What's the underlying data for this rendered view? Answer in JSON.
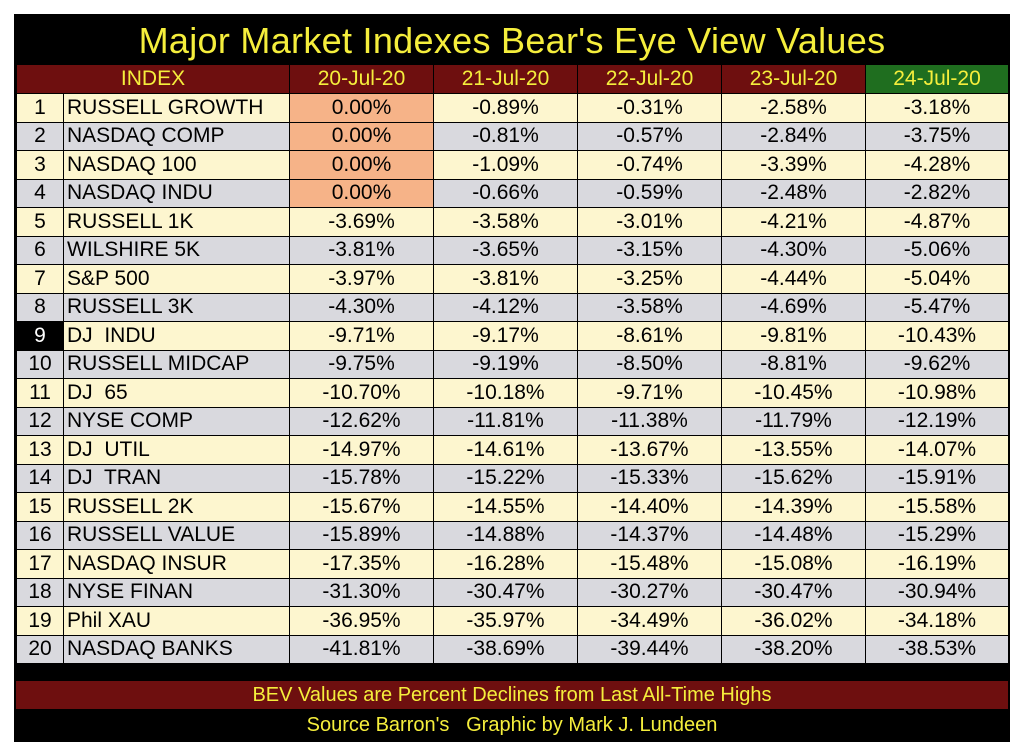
{
  "title": "Major Market Indexes Bear's Eye View Values",
  "footer_note": "BEV Values are Percent Declines from Last All-Time Highs",
  "footer_source": "Source Barron's   Graphic by Mark J. Lundeen",
  "colors": {
    "title_text": "#f5ee3c",
    "header_bg": "#6e0f0f",
    "header_highlight_bg": "#1f6e1f",
    "row_odd_bg": "#fdf6cf",
    "row_even_bg": "#d9d9de",
    "highlight_cell_bg": "#f6b388"
  },
  "chart_data": {
    "type": "table",
    "title": "Major Market Indexes Bear's Eye View Values",
    "columns": [
      "INDEX",
      "20-Jul-20",
      "21-Jul-20",
      "22-Jul-20",
      "23-Jul-20",
      "24-Jul-20"
    ],
    "highlighted_column": "24-Jul-20",
    "rows": [
      {
        "rank": "1",
        "index": "RUSSELL GROWTH",
        "values": [
          "0.00%",
          "-0.89%",
          "-0.31%",
          "-2.58%",
          "-3.18%"
        ]
      },
      {
        "rank": "2",
        "index": "NASDAQ COMP",
        "values": [
          "0.00%",
          "-0.81%",
          "-0.57%",
          "-2.84%",
          "-3.75%"
        ]
      },
      {
        "rank": "3",
        "index": "NASDAQ 100",
        "values": [
          "0.00%",
          "-1.09%",
          "-0.74%",
          "-3.39%",
          "-4.28%"
        ]
      },
      {
        "rank": "4",
        "index": "NASDAQ INDU",
        "values": [
          "0.00%",
          "-0.66%",
          "-0.59%",
          "-2.48%",
          "-2.82%"
        ]
      },
      {
        "rank": "5",
        "index": "RUSSELL 1K",
        "values": [
          "-3.69%",
          "-3.58%",
          "-3.01%",
          "-4.21%",
          "-4.87%"
        ]
      },
      {
        "rank": "6",
        "index": "WILSHIRE 5K",
        "values": [
          "-3.81%",
          "-3.65%",
          "-3.15%",
          "-4.30%",
          "-5.06%"
        ]
      },
      {
        "rank": "7",
        "index": "S&P 500",
        "values": [
          "-3.97%",
          "-3.81%",
          "-3.25%",
          "-4.44%",
          "-5.04%"
        ]
      },
      {
        "rank": "8",
        "index": "RUSSELL 3K",
        "values": [
          "-4.30%",
          "-4.12%",
          "-3.58%",
          "-4.69%",
          "-5.47%"
        ]
      },
      {
        "rank": "9",
        "index": "DJ  INDU",
        "values": [
          "-9.71%",
          "-9.17%",
          "-8.61%",
          "-9.81%",
          "-10.43%"
        ]
      },
      {
        "rank": "10",
        "index": "RUSSELL MIDCAP",
        "values": [
          "-9.75%",
          "-9.19%",
          "-8.50%",
          "-8.81%",
          "-9.62%"
        ]
      },
      {
        "rank": "11",
        "index": "DJ  65",
        "values": [
          "-10.70%",
          "-10.18%",
          "-9.71%",
          "-10.45%",
          "-10.98%"
        ]
      },
      {
        "rank": "12",
        "index": "NYSE COMP",
        "values": [
          "-12.62%",
          "-11.81%",
          "-11.38%",
          "-11.79%",
          "-12.19%"
        ]
      },
      {
        "rank": "13",
        "index": "DJ  UTIL",
        "values": [
          "-14.97%",
          "-14.61%",
          "-13.67%",
          "-13.55%",
          "-14.07%"
        ]
      },
      {
        "rank": "14",
        "index": "DJ  TRAN",
        "values": [
          "-15.78%",
          "-15.22%",
          "-15.33%",
          "-15.62%",
          "-15.91%"
        ]
      },
      {
        "rank": "15",
        "index": "RUSSELL 2K",
        "values": [
          "-15.67%",
          "-14.55%",
          "-14.40%",
          "-14.39%",
          "-15.58%"
        ]
      },
      {
        "rank": "16",
        "index": "RUSSELL VALUE",
        "values": [
          "-15.89%",
          "-14.88%",
          "-14.37%",
          "-14.48%",
          "-15.29%"
        ]
      },
      {
        "rank": "17",
        "index": "NASDAQ INSUR",
        "values": [
          "-17.35%",
          "-16.28%",
          "-15.48%",
          "-15.08%",
          "-16.19%"
        ]
      },
      {
        "rank": "18",
        "index": "NYSE FINAN",
        "values": [
          "-31.30%",
          "-30.47%",
          "-30.27%",
          "-30.47%",
          "-30.94%"
        ]
      },
      {
        "rank": "19",
        "index": "Phil XAU",
        "values": [
          "-36.95%",
          "-35.97%",
          "-34.49%",
          "-36.02%",
          "-34.18%"
        ]
      },
      {
        "rank": "20",
        "index": "NASDAQ BANKS",
        "values": [
          "-41.81%",
          "-38.69%",
          "-39.44%",
          "-38.20%",
          "-38.53%"
        ]
      }
    ]
  }
}
